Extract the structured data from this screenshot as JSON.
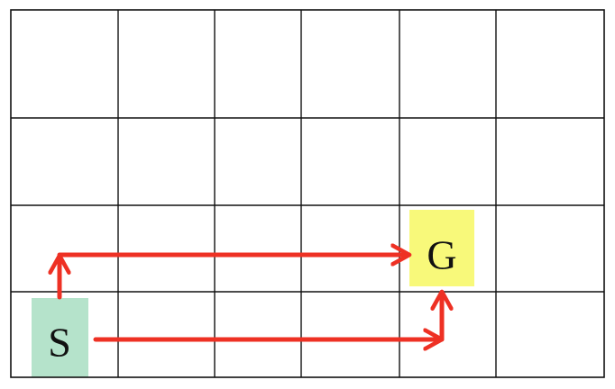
{
  "grid": {
    "rows": 4,
    "cols": 6
  },
  "start": {
    "label": "S",
    "color": "#b5e3cb",
    "row": 3,
    "col": 0
  },
  "goal": {
    "label": "G",
    "color": "#f8f97a",
    "row": 2,
    "col": 4
  },
  "paths": [
    {
      "name": "path-up-then-right",
      "steps": [
        "up",
        "right",
        "right",
        "right",
        "right"
      ]
    },
    {
      "name": "path-right-then-up",
      "steps": [
        "right",
        "right",
        "right",
        "right",
        "up"
      ]
    }
  ],
  "arrow_color": "#ee3124"
}
